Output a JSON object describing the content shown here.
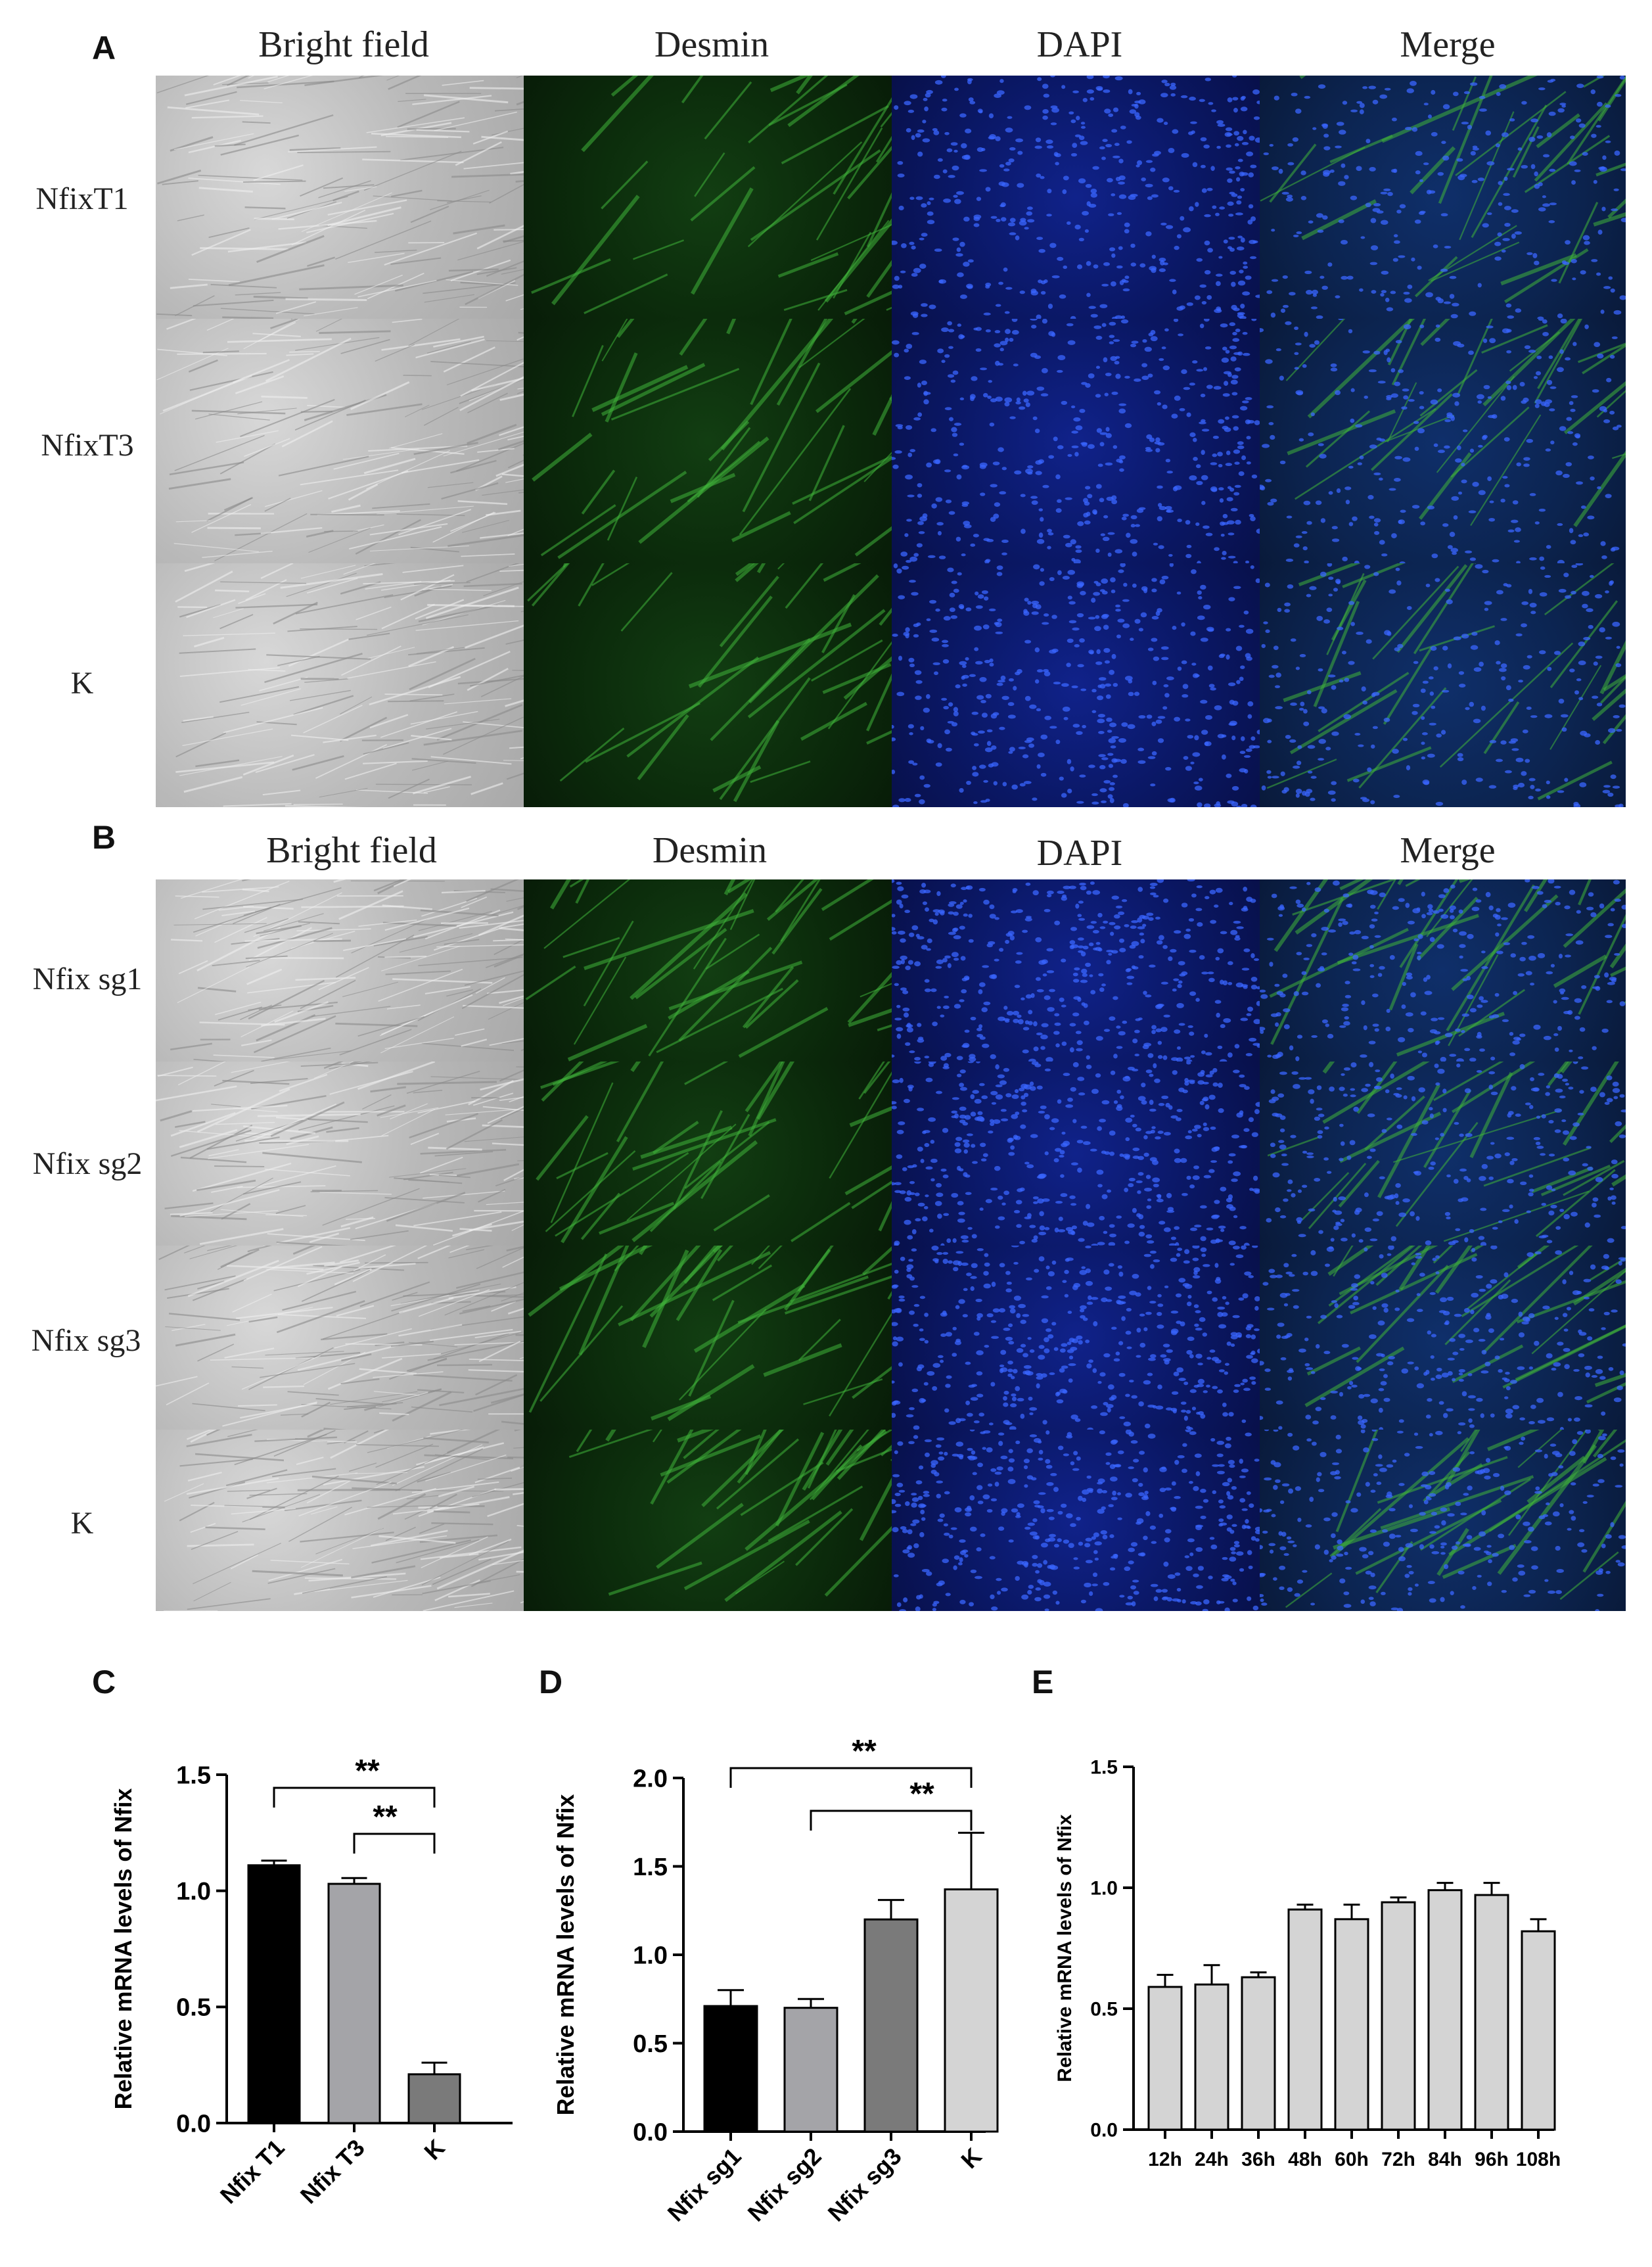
{
  "panel_a": {
    "letter": "A",
    "columns": [
      "Bright field",
      "Desmin",
      "DAPI",
      "Merge"
    ],
    "rows": [
      "NfixT1",
      "NfixT3",
      "K"
    ]
  },
  "panel_b": {
    "letter": "B",
    "columns": [
      "Bright field",
      "Desmin",
      "DAPI",
      "Merge"
    ],
    "rows": [
      "Nfix sg1",
      "Nfix sg2",
      "Nfix sg3",
      "K"
    ]
  },
  "panel_c": {
    "letter": "C"
  },
  "panel_d": {
    "letter": "D"
  },
  "panel_e": {
    "letter": "E"
  },
  "colors": {
    "bright_field": "#b8b8b8",
    "desmin": "#0b2a0b",
    "dapi": "#0a1763",
    "merge": "#0c2450",
    "bar_black": "#000000",
    "bar_mid": "#a4a4a8",
    "bar_dark": "#7a7a7a",
    "bar_light": "#d4d4d4"
  },
  "chart_data": [
    {
      "panel": "C",
      "type": "bar",
      "ylabel": "Relative mRNA levels of Nfix",
      "categories": [
        "Nfix T1",
        "Nfix T3",
        "K"
      ],
      "values": [
        1.11,
        1.03,
        0.21
      ],
      "errors": [
        0.02,
        0.025,
        0.05
      ],
      "colors": [
        "#000000",
        "#a4a4a8",
        "#7a7a7a"
      ],
      "ylim": [
        0,
        1.5
      ],
      "yticks": [
        "0.0",
        "0.5",
        "1.0",
        "1.5"
      ],
      "significance": [
        {
          "from": 0,
          "to": 2,
          "label": "**"
        },
        {
          "from": 1,
          "to": 2,
          "label": "**"
        }
      ]
    },
    {
      "panel": "D",
      "type": "bar",
      "ylabel": "Relative mRNA levels of Nfix",
      "categories": [
        "Nfix sg1",
        "Nfix sg2",
        "Nfix sg3",
        "K"
      ],
      "values": [
        0.71,
        0.7,
        1.2,
        1.37
      ],
      "errors": [
        0.09,
        0.05,
        0.11,
        0.32
      ],
      "colors": [
        "#000000",
        "#a4a4a8",
        "#7a7a7a",
        "#d4d4d4"
      ],
      "ylim": [
        0,
        2.0
      ],
      "yticks": [
        "0.0",
        "0.5",
        "1.0",
        "1.5",
        "2.0"
      ],
      "significance": [
        {
          "from": 0,
          "to": 3,
          "label": "**"
        },
        {
          "from": 1,
          "to": 3,
          "label": "**"
        }
      ]
    },
    {
      "panel": "E",
      "type": "bar",
      "ylabel": "Relative mRNA levels of Nfix",
      "categories": [
        "12h",
        "24h",
        "36h",
        "48h",
        "60h",
        "72h",
        "84h",
        "96h",
        "108h"
      ],
      "values": [
        0.59,
        0.6,
        0.63,
        0.91,
        0.87,
        0.94,
        0.99,
        0.97,
        0.82
      ],
      "errors": [
        0.05,
        0.08,
        0.02,
        0.02,
        0.06,
        0.02,
        0.03,
        0.05,
        0.05
      ],
      "colors": [
        "#d4d4d4",
        "#d4d4d4",
        "#d4d4d4",
        "#d4d4d4",
        "#d4d4d4",
        "#d4d4d4",
        "#d4d4d4",
        "#d4d4d4",
        "#d4d4d4"
      ],
      "ylim": [
        0,
        1.5
      ],
      "yticks": [
        "0.0",
        "0.5",
        "1.0",
        "1.5"
      ],
      "significance": []
    }
  ]
}
